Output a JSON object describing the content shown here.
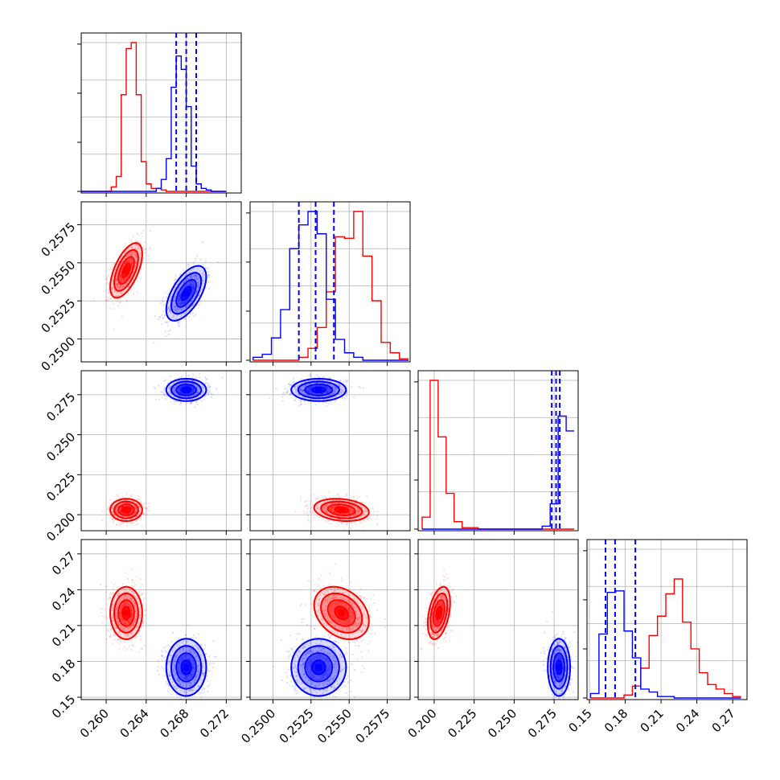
{
  "chart_data": {
    "type": "corner",
    "grid": true,
    "params": [
      {
        "ticks": [
          "0.260",
          "0.264",
          "0.268",
          "0.272"
        ],
        "tick_values": [
          0.26,
          0.264,
          0.268,
          0.272
        ],
        "range": [
          0.2575,
          0.2735
        ]
      },
      {
        "ticks": [
          "0.2500",
          "0.2525",
          "0.2550",
          "0.2575"
        ],
        "tick_values": [
          0.25,
          0.2525,
          0.255,
          0.2575
        ],
        "range": [
          0.2485,
          0.259
        ]
      },
      {
        "ticks": [
          "0.200",
          "0.225",
          "0.250",
          "0.275"
        ],
        "tick_values": [
          0.2,
          0.225,
          0.25,
          0.275
        ],
        "range": [
          0.19,
          0.29
        ]
      },
      {
        "ticks": [
          "0.15",
          "0.18",
          "0.21",
          "0.24",
          "0.27"
        ],
        "tick_values": [
          0.15,
          0.18,
          0.21,
          0.24,
          0.27
        ],
        "range": [
          0.148,
          0.282
        ]
      }
    ],
    "series": [
      {
        "color": "#ff0000",
        "means": [
          0.262,
          0.2545,
          0.203,
          0.2205
        ],
        "stds": [
          0.0008,
          0.0009,
          0.0035,
          0.011
        ],
        "correlations": [
          [
            0,
            1,
            0.6
          ],
          [
            0,
            2,
            0.0
          ],
          [
            0,
            3,
            0.0
          ],
          [
            1,
            2,
            -0.2
          ],
          [
            1,
            3,
            -0.3
          ],
          [
            2,
            3,
            0.4
          ]
        ],
        "quantile_lines": []
      },
      {
        "color": "#0000ff",
        "means": [
          0.268,
          0.253,
          0.278,
          0.175
        ],
        "stds": [
          0.001,
          0.0009,
          0.0035,
          0.012
        ],
        "correlations": [
          [
            0,
            1,
            0.6
          ],
          [
            0,
            2,
            0.0
          ],
          [
            0,
            3,
            0.0
          ],
          [
            1,
            2,
            0.0
          ],
          [
            1,
            3,
            0.0
          ],
          [
            2,
            3,
            0.0
          ]
        ],
        "quantile_lines": [
          [
            0.267,
            0.268,
            0.269
          ],
          [
            0.2517,
            0.2528,
            0.254
          ],
          [
            0.2735,
            0.2762,
            0.2785
          ],
          [
            0.1635,
            0.1715,
            0.1885
          ]
        ]
      }
    ],
    "histograms": [
      {
        "bins": [
          0.2575,
          0.258,
          0.2585,
          0.259,
          0.2595,
          0.26,
          0.2605,
          0.261,
          0.2615,
          0.262,
          0.2625,
          0.263,
          0.2635,
          0.264,
          0.2645,
          0.265,
          0.2655,
          0.266,
          0.2665,
          0.267,
          0.2675,
          0.268,
          0.2685,
          0.269,
          0.2695,
          0.27,
          0.2705,
          0.271,
          0.2715,
          0.272
        ],
        "series": [
          [
            0,
            0,
            0,
            0,
            0,
            0,
            0.03,
            0.1,
            0.65,
            0.96,
            1.0,
            0.65,
            0.2,
            0.05,
            0.02,
            0.02,
            0.01,
            0,
            0,
            0,
            0,
            0,
            0,
            0,
            0,
            0,
            0,
            0,
            0
          ],
          [
            0,
            0,
            0,
            0,
            0,
            0,
            0,
            0,
            0,
            0,
            0,
            0,
            0,
            0,
            0,
            0.02,
            0.08,
            0.22,
            0.7,
            0.91,
            0.82,
            0.57,
            0.17,
            0.05,
            0.02,
            0.01,
            0,
            0,
            0
          ]
        ]
      },
      {
        "bins": [
          0.2487,
          0.2493,
          0.2499,
          0.2505,
          0.2511,
          0.2517,
          0.2523,
          0.2529,
          0.2535,
          0.2541,
          0.2547,
          0.2553,
          0.2559,
          0.2565,
          0.2571,
          0.2577,
          0.2583,
          0.2589
        ],
        "series": [
          [
            0,
            0,
            0,
            0,
            0,
            0.02,
            0.08,
            0.22,
            0.46,
            0.83,
            0.82,
            1.0,
            0.7,
            0.4,
            0.12,
            0.05,
            0.01
          ],
          [
            0.02,
            0.04,
            0.15,
            0.34,
            0.75,
            0.91,
            1.0,
            0.85,
            0.41,
            0.14,
            0.05,
            0.02,
            0,
            0,
            0,
            0,
            0
          ]
        ]
      },
      {
        "bins": [
          0.1925,
          0.1975,
          0.2025,
          0.2075,
          0.2125,
          0.2175,
          0.2225,
          0.2275,
          0.2325,
          0.2375,
          0.2425,
          0.2475,
          0.2525,
          0.2575,
          0.2625,
          0.2675,
          0.2725,
          0.2775,
          0.2825,
          0.2875
        ],
        "series": [
          [
            0.08,
            1.0,
            0.62,
            0.24,
            0.05,
            0.01,
            0.01,
            0,
            0,
            0,
            0,
            0,
            0,
            0,
            0,
            0,
            0,
            0,
            0
          ],
          [
            0,
            0,
            0,
            0,
            0,
            0,
            0,
            0,
            0,
            0,
            0,
            0,
            0,
            0,
            0,
            0.02,
            0.17,
            0.76,
            0.66
          ]
        ]
      },
      {
        "bins": [
          0.151,
          0.158,
          0.165,
          0.172,
          0.179,
          0.186,
          0.193,
          0.2,
          0.207,
          0.214,
          0.221,
          0.228,
          0.235,
          0.242,
          0.249,
          0.256,
          0.263,
          0.27,
          0.277
        ],
        "series": [
          [
            0,
            0,
            0,
            0,
            0.02,
            0.08,
            0.2,
            0.42,
            0.55,
            0.7,
            0.8,
            0.51,
            0.33,
            0.17,
            0.09,
            0.06,
            0.03,
            0.01
          ],
          [
            0.03,
            0.43,
            0.71,
            0.72,
            0.45,
            0.27,
            0.06,
            0.04,
            0.01,
            0.01,
            0,
            0,
            0,
            0,
            0,
            0,
            0,
            0
          ]
        ]
      }
    ]
  }
}
